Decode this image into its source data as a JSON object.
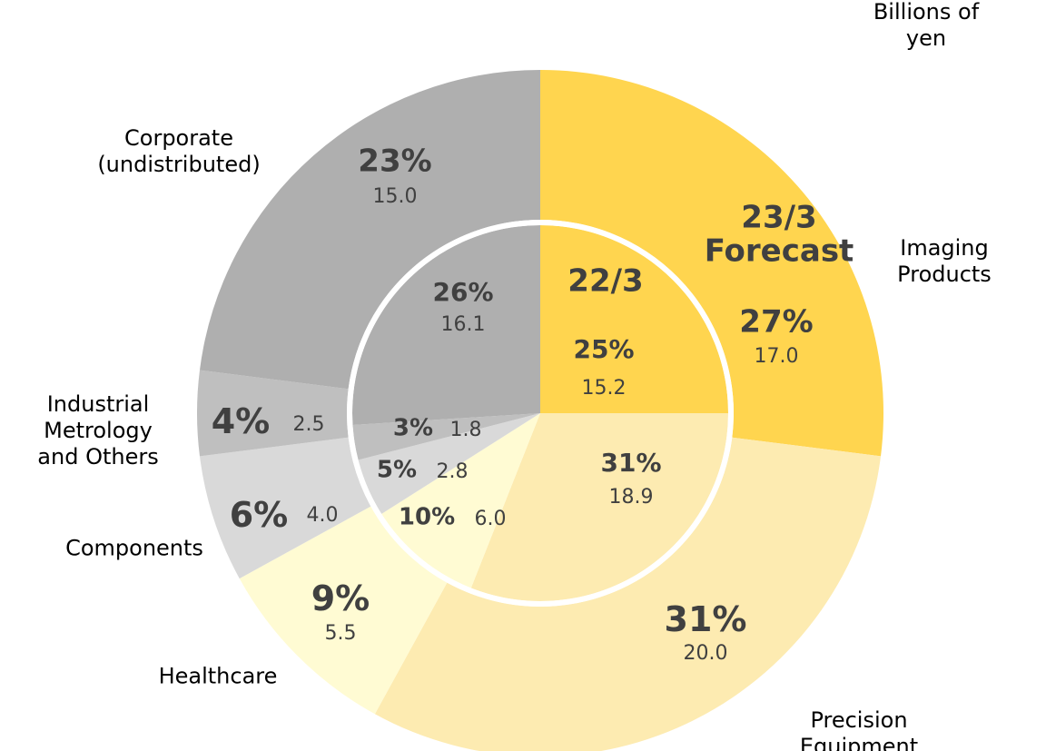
{
  "chart_data": {
    "type": "nested_pie",
    "subtitle": "Billions of yen",
    "categories": [
      "Imaging\nProducts",
      "Precision Equipment",
      "Healthcare",
      "Components",
      "Industrial\nMetrology\nand Others",
      "Corporate\n(undistributed)"
    ],
    "colors": [
      "#ffd54f",
      "#fdebb1",
      "#fffbd3",
      "#d9d9d9",
      "#bfbfbf",
      "#afafaf"
    ],
    "series": [
      {
        "name": "23/3\nForecast",
        "values": [
          27,
          31,
          9,
          6,
          4,
          23
        ],
        "value_labels": [
          "27%",
          "31%",
          "9%",
          "6%",
          "4%",
          "23%"
        ],
        "amounts": [
          17,
          20,
          5.5,
          4,
          2.5,
          15
        ],
        "amount_labels": [
          "17.0",
          "20.0",
          "5.5",
          "4.0",
          "2.5",
          "15.0"
        ]
      },
      {
        "name": "22/3",
        "values": [
          25,
          31,
          10,
          5,
          3,
          26
        ],
        "value_labels": [
          "25%",
          "31%",
          "10%",
          "5%",
          "3%",
          "26%"
        ],
        "amounts": [
          15.2,
          18.9,
          6,
          2.8,
          1.8,
          16.1
        ],
        "amount_labels": [
          "15.2",
          "18.9",
          "6.0",
          "2.8",
          "1.8",
          "16.1"
        ]
      }
    ]
  }
}
